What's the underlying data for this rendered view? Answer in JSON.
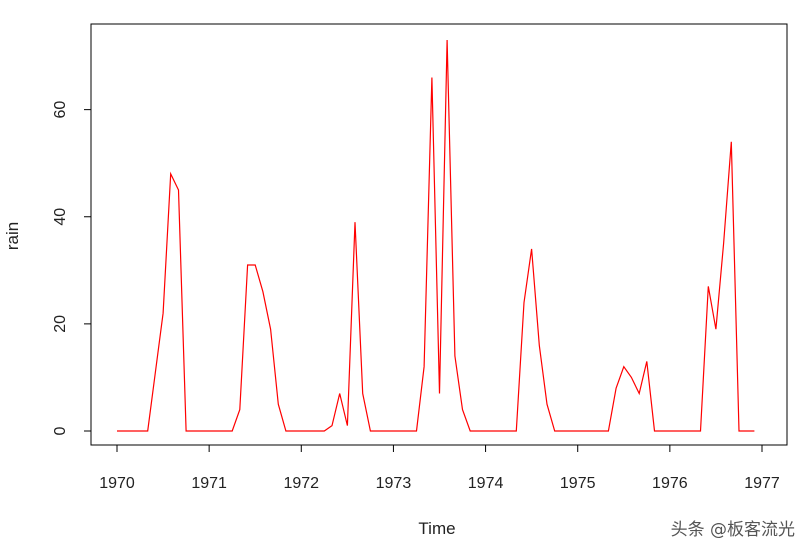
{
  "chart_data": {
    "type": "line",
    "xlabel": "Time",
    "ylabel": "rain",
    "xlim": [
      1970,
      1977
    ],
    "ylim": [
      0,
      73
    ],
    "x_ticks": [
      "1970",
      "1971",
      "1972",
      "1973",
      "1974",
      "1975",
      "1976",
      "1977"
    ],
    "y_ticks": [
      "0",
      "20",
      "40",
      "60"
    ],
    "grid": false,
    "legend": false,
    "series": [
      {
        "color": "#ff0000",
        "x": [
          1970.0,
          1970.083,
          1970.167,
          1970.25,
          1970.333,
          1970.417,
          1970.5,
          1970.583,
          1970.667,
          1970.75,
          1970.833,
          1970.917,
          1971.0,
          1971.083,
          1971.167,
          1971.25,
          1971.333,
          1971.417,
          1971.5,
          1971.583,
          1971.667,
          1971.75,
          1971.833,
          1971.917,
          1972.0,
          1972.083,
          1972.167,
          1972.25,
          1972.333,
          1972.417,
          1972.5,
          1972.583,
          1972.667,
          1972.75,
          1972.833,
          1972.917,
          1973.0,
          1973.083,
          1973.167,
          1973.25,
          1973.333,
          1973.417,
          1973.5,
          1973.583,
          1973.667,
          1973.75,
          1973.833,
          1973.917,
          1974.0,
          1974.083,
          1974.167,
          1974.25,
          1974.333,
          1974.417,
          1974.5,
          1974.583,
          1974.667,
          1974.75,
          1974.833,
          1974.917,
          1975.0,
          1975.083,
          1975.167,
          1975.25,
          1975.333,
          1975.417,
          1975.5,
          1975.583,
          1975.667,
          1975.75,
          1975.833,
          1975.917,
          1976.0,
          1976.083,
          1976.167,
          1976.25,
          1976.333,
          1976.417,
          1976.5,
          1976.583,
          1976.667,
          1976.75,
          1976.833,
          1976.917
        ],
        "y": [
          0,
          0,
          0,
          0,
          0,
          11,
          22,
          48,
          45,
          0,
          0,
          0,
          0,
          0,
          0,
          0,
          4,
          31,
          31,
          26,
          19,
          5,
          0,
          0,
          0,
          0,
          0,
          0,
          1,
          7,
          1,
          39,
          7,
          0,
          0,
          0,
          0,
          0,
          0,
          0,
          12,
          66,
          7,
          73,
          14,
          4,
          0,
          0,
          0,
          0,
          0,
          0,
          0,
          24,
          34,
          16,
          5,
          0,
          0,
          0,
          0,
          0,
          0,
          0,
          0,
          8,
          12,
          10,
          7,
          13,
          0,
          0,
          0,
          0,
          0,
          0,
          0,
          27,
          19,
          35,
          54,
          0,
          0,
          0
        ]
      }
    ]
  },
  "watermark": "头条 @板客流光"
}
